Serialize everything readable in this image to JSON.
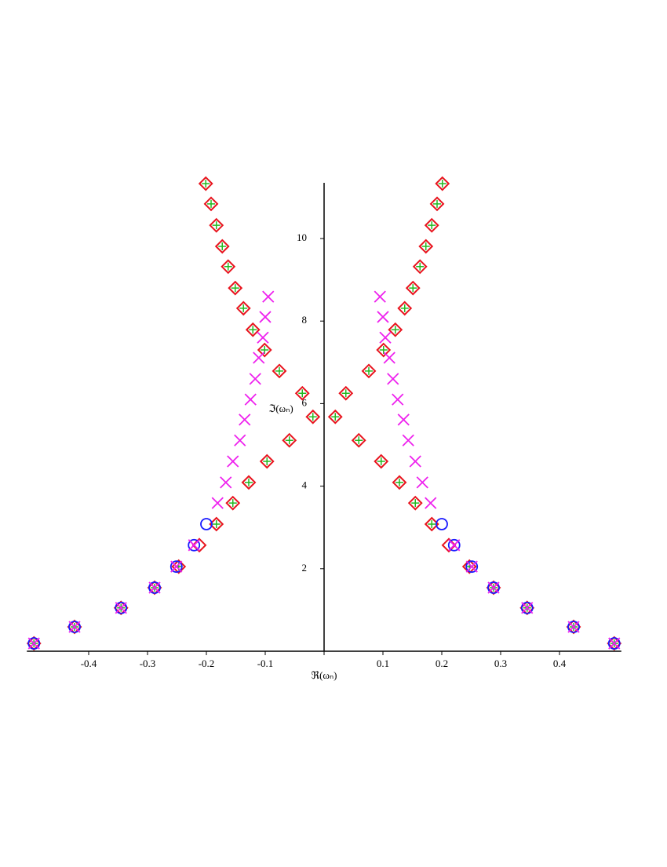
{
  "chart_data": {
    "type": "scatter",
    "xlabel": "ℜ(ωₙ)",
    "ylabel": "ℑ(ωₙ)",
    "xlim": [
      -0.505,
      0.505
    ],
    "ylim": [
      0,
      11.35
    ],
    "xticks": [
      -0.4,
      -0.3,
      -0.2,
      -0.1,
      0,
      0.1,
      0.2,
      0.3,
      0.4
    ],
    "yticks": [
      2,
      4,
      6,
      8,
      10
    ],
    "series": [
      {
        "marker": "diamond",
        "color": "#e8141e",
        "x": [
          0.493,
          0.424,
          0.345,
          0.288,
          0.247,
          0.212,
          0.183,
          0.155,
          0.128,
          0.097,
          0.059,
          0.019,
          0.037,
          0.076,
          0.101,
          0.121,
          0.137,
          0.151,
          0.163,
          0.173,
          0.183,
          0.192,
          0.201,
          -0.493,
          -0.424,
          -0.345,
          -0.288,
          -0.247,
          -0.212,
          -0.183,
          -0.155,
          -0.128,
          -0.097,
          -0.059,
          -0.019,
          -0.037,
          -0.076,
          -0.101,
          -0.121,
          -0.137,
          -0.151,
          -0.163,
          -0.173,
          -0.183,
          -0.192,
          -0.201
        ],
        "y": [
          0.19,
          0.59,
          1.05,
          1.54,
          2.05,
          2.57,
          3.08,
          3.59,
          4.09,
          4.6,
          5.11,
          5.68,
          6.25,
          6.79,
          7.3,
          7.79,
          8.31,
          8.8,
          9.32,
          9.81,
          10.32,
          10.84,
          11.33,
          0.19,
          0.59,
          1.05,
          1.54,
          2.05,
          2.57,
          3.08,
          3.59,
          4.09,
          4.6,
          5.11,
          5.68,
          6.25,
          6.79,
          7.3,
          7.79,
          8.31,
          8.8,
          9.32,
          9.81,
          10.32,
          10.84,
          11.33
        ]
      },
      {
        "marker": "plus",
        "color": "#22bb22",
        "x": [
          0.493,
          0.424,
          0.345,
          0.288,
          0.247,
          0.183,
          0.155,
          0.128,
          0.097,
          0.059,
          0.019,
          0.037,
          0.076,
          0.101,
          0.121,
          0.137,
          0.151,
          0.163,
          0.173,
          0.183,
          0.192,
          0.201,
          -0.493,
          -0.424,
          -0.345,
          -0.288,
          -0.247,
          -0.183,
          -0.155,
          -0.128,
          -0.097,
          -0.059,
          -0.019,
          -0.037,
          -0.076,
          -0.101,
          -0.121,
          -0.137,
          -0.151,
          -0.163,
          -0.173,
          -0.183,
          -0.192,
          -0.201
        ],
        "y": [
          0.19,
          0.59,
          1.05,
          1.54,
          2.05,
          3.08,
          3.59,
          4.09,
          4.6,
          5.11,
          5.68,
          6.25,
          6.79,
          7.3,
          7.79,
          8.31,
          8.8,
          9.32,
          9.81,
          10.32,
          10.84,
          11.33,
          0.19,
          0.59,
          1.05,
          1.54,
          2.05,
          3.08,
          3.59,
          4.09,
          4.6,
          5.11,
          5.68,
          6.25,
          6.79,
          7.3,
          7.79,
          8.31,
          8.8,
          9.32,
          9.81,
          10.32,
          10.84,
          11.33
        ]
      },
      {
        "marker": "circle",
        "color": "#1a1aff",
        "x": [
          0.493,
          0.424,
          0.345,
          0.288,
          0.251,
          0.221,
          0.2,
          -0.493,
          -0.424,
          -0.345,
          -0.288,
          -0.251,
          -0.221,
          -0.2
        ],
        "y": [
          0.19,
          0.59,
          1.05,
          1.54,
          2.05,
          2.57,
          3.08,
          0.19,
          0.59,
          1.05,
          1.54,
          2.05,
          2.57,
          3.08
        ]
      },
      {
        "marker": "x",
        "color": "#ee22ee",
        "x": [
          0.493,
          0.424,
          0.345,
          0.288,
          0.251,
          0.221,
          0.181,
          0.167,
          0.155,
          0.143,
          0.135,
          0.125,
          0.117,
          0.111,
          0.104,
          0.1,
          0.095,
          -0.493,
          -0.424,
          -0.345,
          -0.288,
          -0.251,
          -0.221,
          -0.181,
          -0.167,
          -0.155,
          -0.143,
          -0.135,
          -0.125,
          -0.117,
          -0.111,
          -0.104,
          -0.1,
          -0.095
        ],
        "y": [
          0.19,
          0.59,
          1.05,
          1.54,
          2.05,
          2.57,
          3.59,
          4.09,
          4.6,
          5.11,
          5.61,
          6.1,
          6.6,
          7.11,
          7.6,
          8.1,
          8.59,
          0.19,
          0.59,
          1.05,
          1.54,
          2.05,
          2.57,
          3.59,
          4.09,
          4.6,
          5.11,
          5.61,
          6.1,
          6.6,
          7.11,
          7.6,
          8.1,
          8.59
        ]
      }
    ]
  }
}
